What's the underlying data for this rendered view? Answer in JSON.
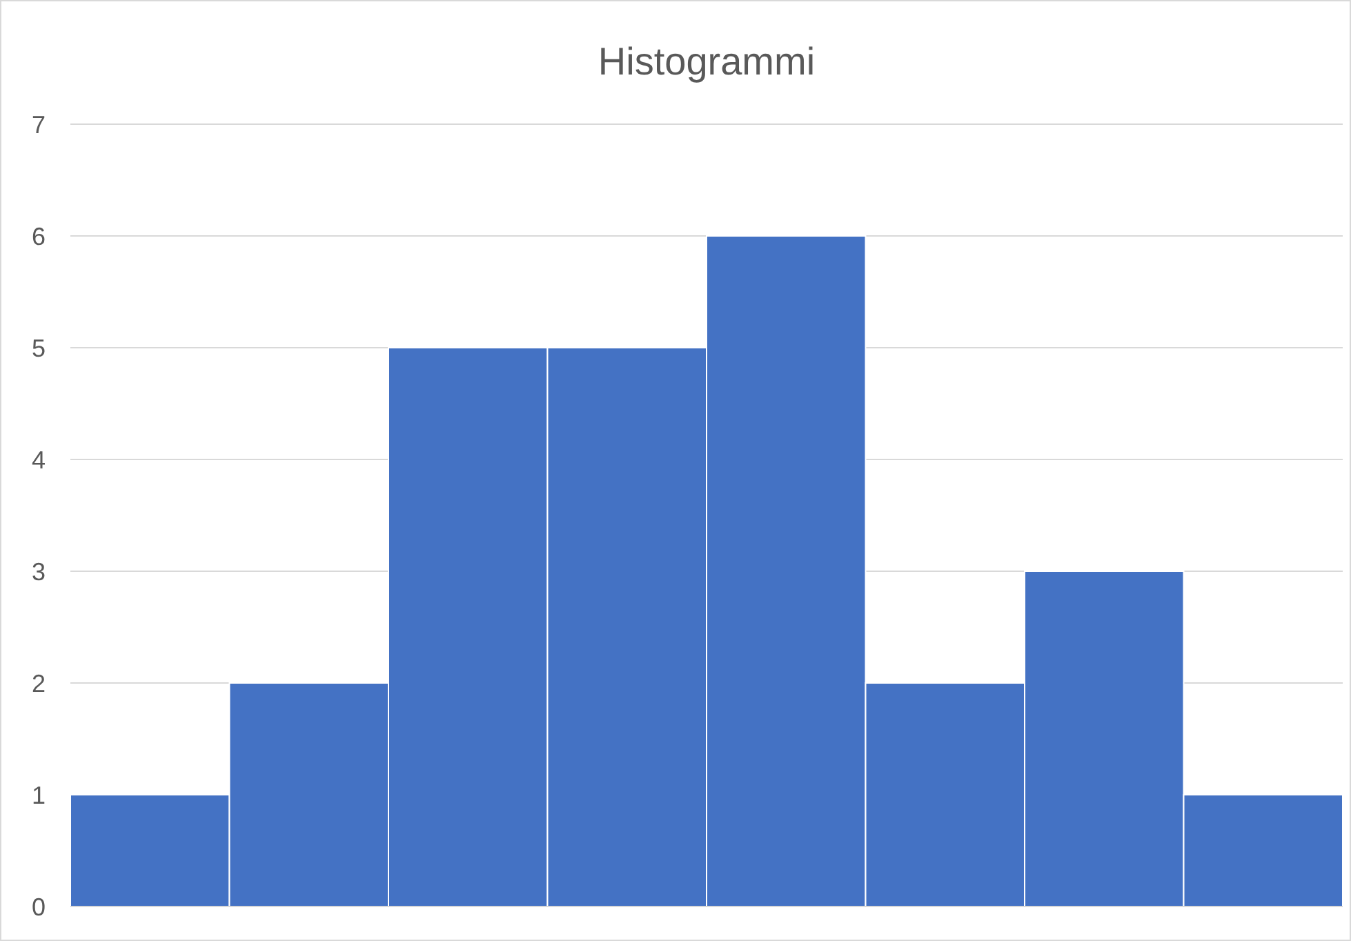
{
  "chart_data": {
    "type": "bar",
    "title": "Histogrammi",
    "categories": [
      null,
      null,
      null,
      null,
      null,
      null,
      null,
      null
    ],
    "values": [
      1,
      2,
      5,
      5,
      6,
      2,
      3,
      1
    ],
    "color": "#4472c4",
    "ylim": [
      0,
      7
    ],
    "yticks": [
      0,
      1,
      2,
      3,
      4,
      5,
      6,
      7
    ],
    "grid": "y"
  }
}
